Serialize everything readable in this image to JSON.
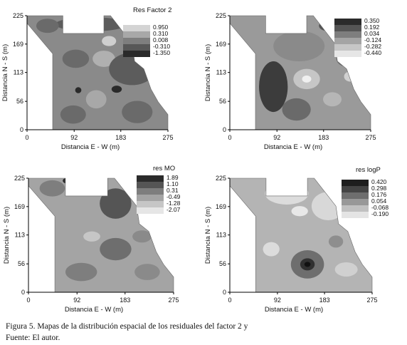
{
  "caption": {
    "line1": "Figura 5. Mapas de la distribución espacial de los residuales del factor 2 y",
    "line2": "Fuente: El autor."
  },
  "chart_data": [
    {
      "type": "heatmap",
      "title": "Res Factor 2",
      "xlabel": "Distancia E - W (m)",
      "ylabel": "Distancia N - S (m)",
      "xticks": [
        "0",
        "92",
        "183",
        "275"
      ],
      "yticks": [
        "0",
        "56",
        "113",
        "169",
        "225"
      ],
      "xlim": [
        0,
        275
      ],
      "ylim": [
        0,
        225
      ],
      "legend": {
        "placement": "top-right",
        "levels": [
          "0.950",
          "0.310",
          "0.008",
          "-0.310",
          "-1.350"
        ],
        "colors": [
          "#d4d4d4",
          "#a8a8a8",
          "#7e7e7e",
          "#575757",
          "#2a2a2a"
        ]
      },
      "base_color": "#8a8a8a",
      "blobs": [
        {
          "x": 125,
          "y": 208,
          "rx": 70,
          "ry": 14,
          "color": "#5c5c5c"
        },
        {
          "x": 40,
          "y": 205,
          "rx": 22,
          "ry": 14,
          "color": "#6a6a6a"
        },
        {
          "x": 95,
          "y": 140,
          "rx": 26,
          "ry": 18,
          "color": "#6a6a6a"
        },
        {
          "x": 150,
          "y": 140,
          "rx": 22,
          "ry": 16,
          "color": "#b0b0b0"
        },
        {
          "x": 205,
          "y": 120,
          "rx": 45,
          "ry": 32,
          "color": "#5c5c5c"
        },
        {
          "x": 135,
          "y": 60,
          "rx": 20,
          "ry": 18,
          "color": "#a8a8a8"
        },
        {
          "x": 90,
          "y": 30,
          "rx": 25,
          "ry": 18,
          "color": "#6a6a6a"
        },
        {
          "x": 215,
          "y": 35,
          "rx": 30,
          "ry": 22,
          "color": "#6a6a6a"
        },
        {
          "x": 175,
          "y": 80,
          "rx": 10,
          "ry": 7,
          "color": "#2a2a2a"
        },
        {
          "x": 100,
          "y": 78,
          "rx": 6,
          "ry": 6,
          "color": "#2a2a2a"
        },
        {
          "x": 160,
          "y": 175,
          "rx": 14,
          "ry": 10,
          "color": "#cfcfcf"
        }
      ]
    },
    {
      "type": "heatmap",
      "title": "",
      "xlabel": "Distancia E - W (m)",
      "ylabel": "Distancia N - S (m)",
      "xticks": [
        "0",
        "92",
        "183",
        "275"
      ],
      "yticks": [
        "0",
        "56",
        "113",
        "169",
        "225"
      ],
      "xlim": [
        0,
        275
      ],
      "ylim": [
        0,
        225
      ],
      "legend": {
        "placement": "top-right",
        "levels": [
          "0.350",
          "0.192",
          "0.034",
          "-0.124",
          "-0.282",
          "-0.440"
        ],
        "colors": [
          "#2b2b2b",
          "#555555",
          "#7e7e7e",
          "#a4a4a4",
          "#c6c6c6",
          "#e6e6e6"
        ]
      },
      "base_color": "#9a9a9a",
      "blobs": [
        {
          "x": 135,
          "y": 165,
          "rx": 50,
          "ry": 30,
          "color": "#8a8a8a"
        },
        {
          "x": 85,
          "y": 85,
          "rx": 28,
          "ry": 50,
          "color": "#3c3c3c"
        },
        {
          "x": 150,
          "y": 100,
          "rx": 26,
          "ry": 20,
          "color": "#c6c6c6"
        },
        {
          "x": 150,
          "y": 100,
          "rx": 9,
          "ry": 7,
          "color": "#f0f0f0"
        },
        {
          "x": 130,
          "y": 40,
          "rx": 28,
          "ry": 22,
          "color": "#6a6a6a"
        },
        {
          "x": 200,
          "y": 60,
          "rx": 18,
          "ry": 14,
          "color": "#b6b6b6"
        },
        {
          "x": 230,
          "y": 140,
          "rx": 22,
          "ry": 16,
          "color": "#6a6a6a"
        },
        {
          "x": 235,
          "y": 105,
          "rx": 12,
          "ry": 10,
          "color": "#d0d0d0"
        },
        {
          "x": 190,
          "y": 205,
          "rx": 16,
          "ry": 10,
          "color": "#555555"
        }
      ]
    },
    {
      "type": "heatmap",
      "title": "res MO",
      "xlabel": "Distancia E - W (m)",
      "ylabel": "Distancia N - S (m)",
      "xticks": [
        "0",
        "92",
        "183",
        "275"
      ],
      "yticks": [
        "0",
        "56",
        "113",
        "169",
        "225"
      ],
      "xlim": [
        0,
        275
      ],
      "ylim": [
        0,
        225
      ],
      "legend": {
        "placement": "top-right",
        "levels": [
          "1.89",
          "1.10",
          "0.31",
          "-0.49",
          "-1.28",
          "-2.07"
        ],
        "colors": [
          "#2b2b2b",
          "#555555",
          "#7e7e7e",
          "#a4a4a4",
          "#c6c6c6",
          "#e6e6e6"
        ]
      },
      "base_color": "#a4a4a4",
      "blobs": [
        {
          "x": 45,
          "y": 205,
          "rx": 24,
          "ry": 16,
          "color": "#7e7e7e"
        },
        {
          "x": 75,
          "y": 220,
          "rx": 10,
          "ry": 6,
          "color": "#2b2b2b"
        },
        {
          "x": 165,
          "y": 175,
          "rx": 30,
          "ry": 30,
          "color": "#555555"
        },
        {
          "x": 165,
          "y": 85,
          "rx": 30,
          "ry": 22,
          "color": "#6e6e6e"
        },
        {
          "x": 100,
          "y": 40,
          "rx": 30,
          "ry": 18,
          "color": "#7e7e7e"
        },
        {
          "x": 215,
          "y": 110,
          "rx": 18,
          "ry": 12,
          "color": "#8a8a8a"
        },
        {
          "x": 120,
          "y": 110,
          "rx": 16,
          "ry": 10,
          "color": "#c6c6c6"
        },
        {
          "x": 225,
          "y": 40,
          "rx": 24,
          "ry": 16,
          "color": "#8a8a8a"
        }
      ]
    },
    {
      "type": "heatmap",
      "title": "res logP",
      "xlabel": "Distancia E - W (m)",
      "ylabel": "Distancia N - S (m)",
      "xticks": [
        "0",
        "92",
        "183",
        "275"
      ],
      "yticks": [
        "0",
        "56",
        "113",
        "169",
        "225"
      ],
      "xlim": [
        0,
        275
      ],
      "ylim": [
        0,
        225
      ],
      "legend": {
        "placement": "top-right",
        "levels": [
          "0.420",
          "0.298",
          "0.176",
          "0.054",
          "-0.068",
          "-0.190"
        ],
        "colors": [
          "#1e1e1e",
          "#444444",
          "#6e6e6e",
          "#989898",
          "#c0c0c0",
          "#e4e4e4"
        ]
      },
      "base_color": "#b4b4b4",
      "blobs": [
        {
          "x": 110,
          "y": 195,
          "rx": 42,
          "ry": 22,
          "color": "#dcdcdc"
        },
        {
          "x": 190,
          "y": 170,
          "rx": 32,
          "ry": 28,
          "color": "#d8d8d8"
        },
        {
          "x": 135,
          "y": 160,
          "rx": 16,
          "ry": 10,
          "color": "#e8e8e8"
        },
        {
          "x": 150,
          "y": 55,
          "rx": 32,
          "ry": 28,
          "color": "#6e6e6e"
        },
        {
          "x": 150,
          "y": 55,
          "rx": 14,
          "ry": 12,
          "color": "#303030"
        },
        {
          "x": 150,
          "y": 55,
          "rx": 6,
          "ry": 5,
          "color": "#111111"
        },
        {
          "x": 80,
          "y": 85,
          "rx": 16,
          "ry": 14,
          "color": "#dcdcdc"
        },
        {
          "x": 225,
          "y": 45,
          "rx": 22,
          "ry": 14,
          "color": "#d0d0d0"
        },
        {
          "x": 205,
          "y": 100,
          "rx": 14,
          "ry": 12,
          "color": "#8e8e8e"
        }
      ]
    }
  ]
}
